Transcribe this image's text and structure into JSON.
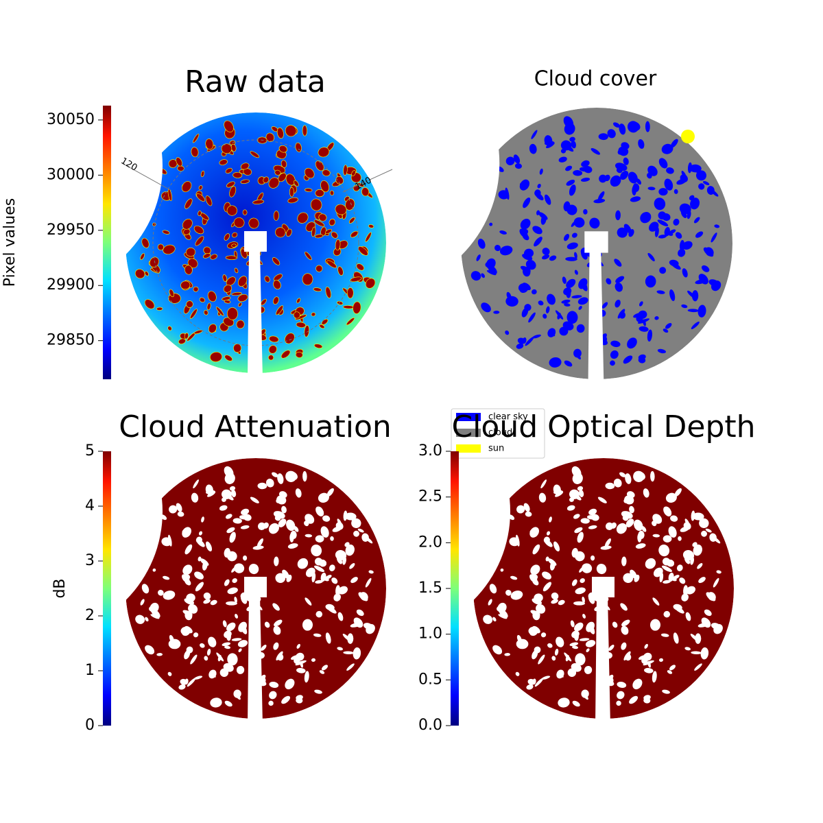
{
  "chart_data": [
    {
      "type": "image",
      "title": "Raw data",
      "annotations": [
        "120",
        "140"
      ],
      "colorbar": {
        "label": "Pixel values",
        "lim": [
          29815,
          30063
        ],
        "ticks": [
          29850,
          29900,
          29950,
          30000,
          30050
        ]
      }
    },
    {
      "type": "image",
      "title": "Cloud cover",
      "legend": [
        {
          "name": "clear sky",
          "color": "#0000ff"
        },
        {
          "name": "cloud",
          "color": "#808080"
        },
        {
          "name": "sun",
          "color": "#ffff00"
        }
      ]
    },
    {
      "type": "image",
      "title": "Cloud Attenuation",
      "colorbar": {
        "label": "dB",
        "lim": [
          0,
          5
        ],
        "ticks": [
          0,
          1,
          2,
          3,
          4,
          5
        ]
      }
    },
    {
      "type": "image",
      "title": "Cloud Optical Depth",
      "colorbar": {
        "lim": [
          0,
          3
        ],
        "ticks": [
          {
            "value": 0,
            "label": "0.0"
          },
          {
            "value": 0.5,
            "label": "0.5"
          },
          {
            "value": 1,
            "label": "1.0"
          },
          {
            "value": 1.5,
            "label": "1.5"
          },
          {
            "value": 2,
            "label": "2.0"
          },
          {
            "value": 2.5,
            "label": "2.5"
          },
          {
            "value": 3,
            "label": "3.0"
          }
        ]
      }
    }
  ]
}
